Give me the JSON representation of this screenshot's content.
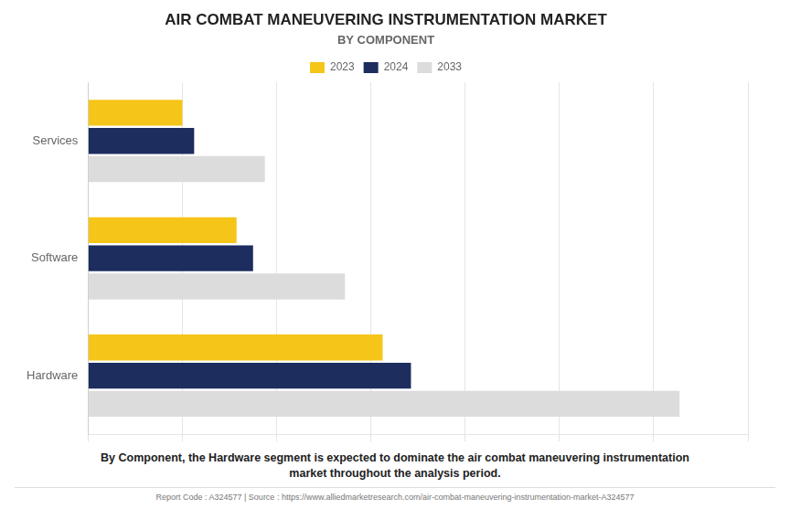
{
  "chart_data": {
    "type": "bar",
    "orientation": "horizontal",
    "title": "AIR COMBAT MANEUVERING INSTRUMENTATION MARKET",
    "subtitle": "BY COMPONENT",
    "categories": [
      "Services",
      "Software",
      "Hardware"
    ],
    "series": [
      {
        "name": "2023",
        "color": "#F5C518",
        "values": [
          200,
          315,
          625
        ]
      },
      {
        "name": "2024",
        "color": "#1C2D5E",
        "values": [
          225,
          350,
          685
        ]
      },
      {
        "name": "2033",
        "color": "#DCDCDC",
        "values": [
          375,
          545,
          1255
        ]
      }
    ],
    "xlim": [
      0,
      1400
    ],
    "xticks": [
      0,
      200,
      400,
      600,
      800,
      1000,
      1200,
      1400
    ],
    "grid": true,
    "legend": "top",
    "tick_labels": "y",
    "annotation": "By Component, the Hardware segment is expected to dominate the air combat maneuvering instrumentation\nmarket throughout the analysis period.",
    "footer": "Report Code : A324577  |  Source : https://www.alliedmarketresearch.com/air-combat-maneuvering-instrumentation-market-A324577"
  }
}
